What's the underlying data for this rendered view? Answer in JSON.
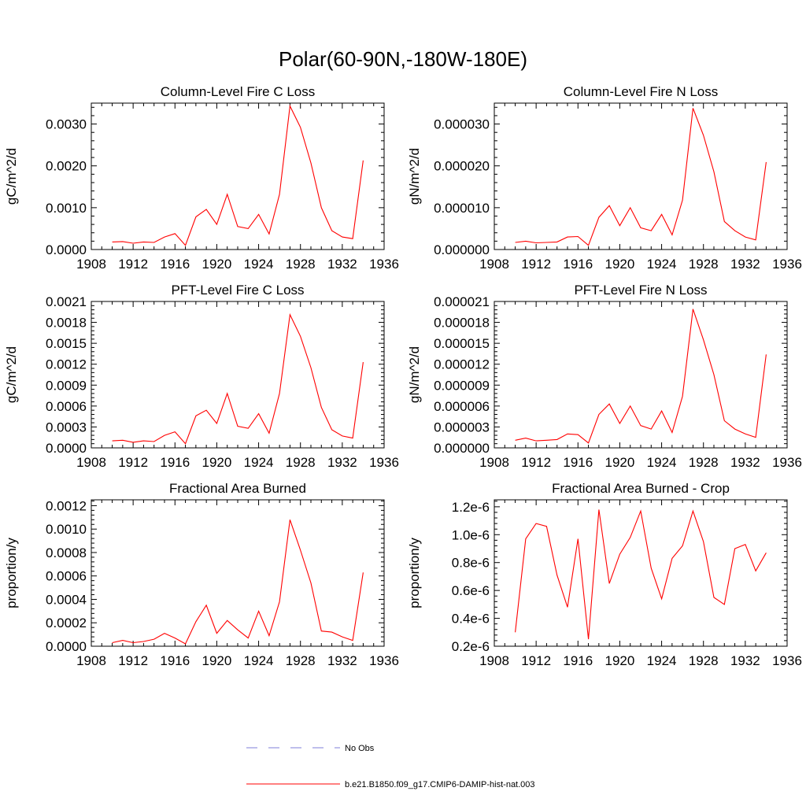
{
  "figure": {
    "title": "Polar(60-90N,-180W-180E)"
  },
  "legend": {
    "items": [
      {
        "label": "No Obs",
        "color": "#7f7fd9",
        "style": "dashed"
      },
      {
        "label": "b.e21.B1850.f09_g17.CMIP6-DAMIP-hist-nat.003",
        "color": "#ff0000",
        "style": "solid"
      }
    ]
  },
  "chart_data": [
    {
      "type": "line",
      "title": "Column-Level Fire C Loss",
      "ylabel": "gC/m^2/d",
      "xlim": [
        1908,
        1936
      ],
      "xticks": [
        1908,
        1912,
        1916,
        1920,
        1924,
        1928,
        1932,
        1936
      ],
      "xtick_labels": [
        "1908",
        "1912",
        "1916",
        "1920",
        "1924",
        "1928",
        "1932",
        "1936"
      ],
      "ylim": [
        0,
        0.0035
      ],
      "yticks": [
        0,
        0.001,
        0.002,
        0.003
      ],
      "ytick_labels": [
        "0.0000",
        "0.0010",
        "0.0020",
        "0.0030"
      ],
      "x": [
        1910,
        1911,
        1912,
        1913,
        1914,
        1915,
        1916,
        1917,
        1918,
        1919,
        1920,
        1921,
        1922,
        1923,
        1924,
        1925,
        1926,
        1927,
        1928,
        1929,
        1930,
        1931,
        1932,
        1933,
        1934
      ],
      "series": [
        {
          "name": "b.e21.B1850.f09_g17.CMIP6-DAMIP-hist-nat.003",
          "color": "#ff0000",
          "values": [
            0.00018,
            0.00019,
            0.00015,
            0.00018,
            0.00017,
            0.0003,
            0.00038,
            0.0001,
            0.00078,
            0.00096,
            0.0006,
            0.00132,
            0.00055,
            0.0005,
            0.00084,
            0.00037,
            0.00132,
            0.00343,
            0.00292,
            0.00207,
            0.001,
            0.00045,
            0.0003,
            0.00026,
            0.00213
          ]
        }
      ]
    },
    {
      "type": "line",
      "title": "Column-Level Fire N Loss",
      "ylabel": "gN/m^2/d",
      "xlim": [
        1908,
        1936
      ],
      "xticks": [
        1908,
        1912,
        1916,
        1920,
        1924,
        1928,
        1932,
        1936
      ],
      "xtick_labels": [
        "1908",
        "1912",
        "1916",
        "1920",
        "1924",
        "1928",
        "1932",
        "1936"
      ],
      "ylim": [
        0,
        3.5e-05
      ],
      "yticks": [
        0,
        1e-05,
        2e-05,
        3e-05
      ],
      "ytick_labels": [
        "0.000000",
        "0.000010",
        "0.000020",
        "0.000030"
      ],
      "x": [
        1910,
        1911,
        1912,
        1913,
        1914,
        1915,
        1916,
        1917,
        1918,
        1919,
        1920,
        1921,
        1922,
        1923,
        1924,
        1925,
        1926,
        1927,
        1928,
        1929,
        1930,
        1931,
        1932,
        1933,
        1934
      ],
      "series": [
        {
          "name": "b.e21.B1850.f09_g17.CMIP6-DAMIP-hist-nat.003",
          "color": "#ff0000",
          "values": [
            1.7e-06,
            2e-06,
            1.6e-06,
            1.7e-06,
            1.8e-06,
            3e-06,
            3.1e-06,
            1e-06,
            7.7e-06,
            1.05e-05,
            5.7e-06,
            1e-05,
            5.2e-06,
            4.5e-06,
            8.4e-06,
            3.5e-06,
            1.18e-05,
            3.38e-05,
            2.73e-05,
            1.86e-05,
            6.7e-06,
            4.5e-06,
            3e-06,
            2.3e-06,
            2.09e-05
          ]
        }
      ]
    },
    {
      "type": "line",
      "title": "PFT-Level Fire C Loss",
      "ylabel": "gC/m^2/d",
      "xlim": [
        1908,
        1936
      ],
      "xticks": [
        1908,
        1912,
        1916,
        1920,
        1924,
        1928,
        1932,
        1936
      ],
      "xtick_labels": [
        "1908",
        "1912",
        "1916",
        "1920",
        "1924",
        "1928",
        "1932",
        "1936"
      ],
      "ylim": [
        0,
        0.0021
      ],
      "yticks": [
        0,
        0.0003,
        0.0006,
        0.0009,
        0.0012,
        0.0015,
        0.0018,
        0.0021
      ],
      "ytick_labels": [
        "0.0000",
        "0.0003",
        "0.0006",
        "0.0009",
        "0.0012",
        "0.0015",
        "0.0018",
        "0.0021"
      ],
      "x": [
        1910,
        1911,
        1912,
        1913,
        1914,
        1915,
        1916,
        1917,
        1918,
        1919,
        1920,
        1921,
        1922,
        1923,
        1924,
        1925,
        1926,
        1927,
        1928,
        1929,
        1930,
        1931,
        1932,
        1933,
        1934
      ],
      "series": [
        {
          "name": "b.e21.B1850.f09_g17.CMIP6-DAMIP-hist-nat.003",
          "color": "#ff0000",
          "values": [
            0.0001,
            0.00011,
            8e-05,
            0.0001,
            9e-05,
            0.00018,
            0.00023,
            6e-05,
            0.00046,
            0.00054,
            0.00035,
            0.00078,
            0.00031,
            0.00028,
            0.00049,
            0.00021,
            0.00078,
            0.00191,
            0.0016,
            0.00115,
            0.00058,
            0.00026,
            0.00017,
            0.00014,
            0.00123
          ]
        }
      ]
    },
    {
      "type": "line",
      "title": "PFT-Level Fire N Loss",
      "ylabel": "gN/m^2/d",
      "xlim": [
        1908,
        1936
      ],
      "xticks": [
        1908,
        1912,
        1916,
        1920,
        1924,
        1928,
        1932,
        1936
      ],
      "xtick_labels": [
        "1908",
        "1912",
        "1916",
        "1920",
        "1924",
        "1928",
        "1932",
        "1936"
      ],
      "ylim": [
        0,
        2.1e-05
      ],
      "yticks": [
        0,
        3e-06,
        6e-06,
        9e-06,
        1.2e-05,
        1.5e-05,
        1.8e-05,
        2.1e-05
      ],
      "ytick_labels": [
        "0.000000",
        "0.000003",
        "0.000006",
        "0.000009",
        "0.000012",
        "0.000015",
        "0.000018",
        "0.000021"
      ],
      "x": [
        1910,
        1911,
        1912,
        1913,
        1914,
        1915,
        1916,
        1917,
        1918,
        1919,
        1920,
        1921,
        1922,
        1923,
        1924,
        1925,
        1926,
        1927,
        1928,
        1929,
        1930,
        1931,
        1932,
        1933,
        1934
      ],
      "series": [
        {
          "name": "b.e21.B1850.f09_g17.CMIP6-DAMIP-hist-nat.003",
          "color": "#ff0000",
          "values": [
            1.1e-06,
            1.4e-06,
            1e-06,
            1.1e-06,
            1.2e-06,
            2e-06,
            1.9e-06,
            7e-07,
            4.8e-06,
            6.3e-06,
            3.5e-06,
            6e-06,
            3.2e-06,
            2.7e-06,
            5.3e-06,
            2.2e-06,
            7.4e-06,
            1.99e-05,
            1.55e-05,
            1.05e-05,
            3.9e-06,
            2.7e-06,
            2e-06,
            1.5e-06,
            1.34e-05
          ]
        }
      ]
    },
    {
      "type": "line",
      "title": "Fractional Area Burned",
      "ylabel": "proportion/y",
      "xlim": [
        1908,
        1936
      ],
      "xticks": [
        1908,
        1912,
        1916,
        1920,
        1924,
        1928,
        1932,
        1936
      ],
      "xtick_labels": [
        "1908",
        "1912",
        "1916",
        "1920",
        "1924",
        "1928",
        "1932",
        "1936"
      ],
      "ylim": [
        0,
        0.00125
      ],
      "yticks": [
        0,
        0.0002,
        0.0004,
        0.0006,
        0.0008,
        0.001,
        0.0012
      ],
      "ytick_labels": [
        "0.0000",
        "0.0002",
        "0.0004",
        "0.0006",
        "0.0008",
        "0.0010",
        "0.0012"
      ],
      "x": [
        1910,
        1911,
        1912,
        1913,
        1914,
        1915,
        1916,
        1917,
        1918,
        1919,
        1920,
        1921,
        1922,
        1923,
        1924,
        1925,
        1926,
        1927,
        1928,
        1929,
        1930,
        1931,
        1932,
        1933,
        1934
      ],
      "series": [
        {
          "name": "b.e21.B1850.f09_g17.CMIP6-DAMIP-hist-nat.003",
          "color": "#ff0000",
          "values": [
            3e-05,
            5e-05,
            3e-05,
            4e-05,
            6e-05,
            0.00011,
            7e-05,
            2e-05,
            0.00021,
            0.00035,
            0.00011,
            0.00022,
            0.00014,
            7e-05,
            0.0003,
            9e-05,
            0.00038,
            0.00108,
            0.00082,
            0.00054,
            0.00013,
            0.00012,
            8e-05,
            5e-05,
            0.00063
          ]
        }
      ]
    },
    {
      "type": "line",
      "title": "Fractional Area Burned - Crop",
      "ylabel": "proportion/y",
      "xlim": [
        1908,
        1936
      ],
      "xticks": [
        1908,
        1912,
        1916,
        1920,
        1924,
        1928,
        1932,
        1936
      ],
      "xtick_labels": [
        "1908",
        "1912",
        "1916",
        "1920",
        "1924",
        "1928",
        "1932",
        "1936"
      ],
      "ylim": [
        2e-07,
        1.25e-06
      ],
      "yticks": [
        2e-07,
        4e-07,
        6e-07,
        8e-07,
        1e-06,
        1.2e-06
      ],
      "ytick_labels": [
        "0.2e-6",
        "0.4e-6",
        "0.6e-6",
        "0.8e-6",
        "1.0e-6",
        "1.2e-6"
      ],
      "x": [
        1910,
        1911,
        1912,
        1913,
        1914,
        1915,
        1916,
        1917,
        1918,
        1919,
        1920,
        1921,
        1922,
        1923,
        1924,
        1925,
        1926,
        1927,
        1928,
        1929,
        1930,
        1931,
        1932,
        1933,
        1934
      ],
      "series": [
        {
          "name": "b.e21.B1850.f09_g17.CMIP6-DAMIP-hist-nat.003",
          "color": "#ff0000",
          "values": [
            3e-07,
            9.7e-07,
            1.08e-06,
            1.06e-06,
            7.1e-07,
            4.8e-07,
            9.7e-07,
            2.5e-07,
            1.18e-06,
            6.5e-07,
            8.6e-07,
            9.8e-07,
            1.17e-06,
            7.6e-07,
            5.4e-07,
            8.3e-07,
            9.2e-07,
            1.17e-06,
            9.5e-07,
            5.5e-07,
            5e-07,
            9e-07,
            9.3e-07,
            7.4e-07,
            8.7e-07
          ]
        }
      ]
    }
  ]
}
